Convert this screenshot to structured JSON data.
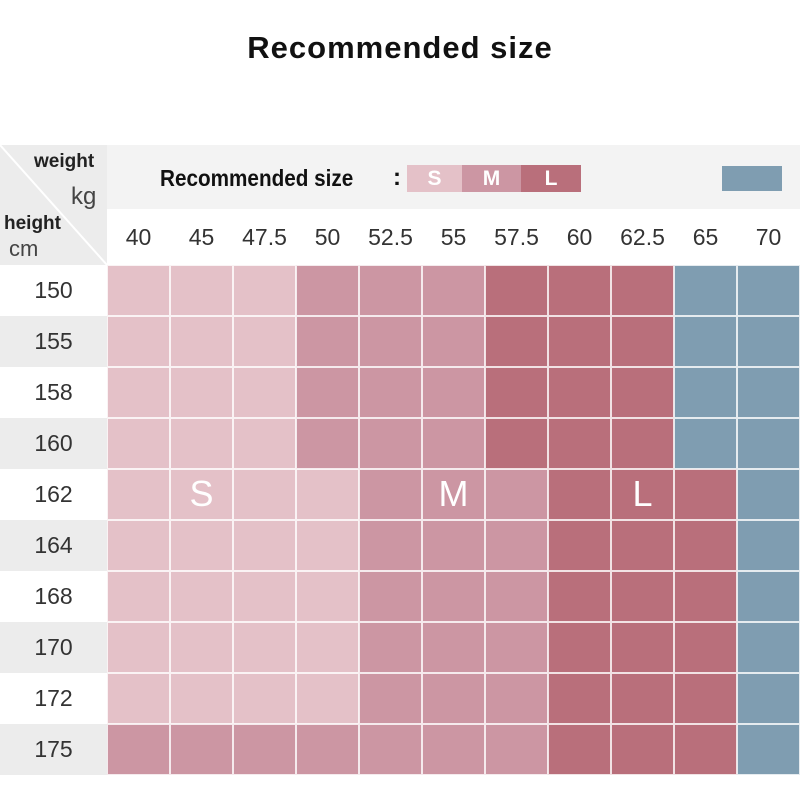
{
  "title": "Recommended size",
  "chart_data": {
    "type": "heatmap",
    "title": "Recommended size",
    "xlabel": "weight",
    "x_unit": "kg",
    "ylabel": "height",
    "y_unit": "cm",
    "legend_label": "Recommended size",
    "legend_colon": ":",
    "legend": [
      {
        "size": "S",
        "color": "#e4c1c8"
      },
      {
        "size": "M",
        "color": "#cc96a3"
      },
      {
        "size": "L",
        "color": "#b96f7b"
      }
    ],
    "extra_color": "#7f9db1",
    "weights": [
      "40",
      "45",
      "47.5",
      "50",
      "52.5",
      "55",
      "57.5",
      "60",
      "62.5",
      "65",
      "70"
    ],
    "heights": [
      "150",
      "155",
      "158",
      "160",
      "162",
      "164",
      "168",
      "170",
      "172",
      "175"
    ],
    "colors": {
      "S": "#e4c1c8",
      "M": "#cc96a3",
      "L": "#b96f7b",
      "X": "#7f9db1"
    },
    "grid": [
      [
        "S",
        "S",
        "S",
        "M",
        "M",
        "M",
        "L",
        "L",
        "L",
        "X",
        "X"
      ],
      [
        "S",
        "S",
        "S",
        "M",
        "M",
        "M",
        "L",
        "L",
        "L",
        "X",
        "X"
      ],
      [
        "S",
        "S",
        "S",
        "M",
        "M",
        "M",
        "L",
        "L",
        "L",
        "X",
        "X"
      ],
      [
        "S",
        "S",
        "S",
        "M",
        "M",
        "M",
        "L",
        "L",
        "L",
        "X",
        "X"
      ],
      [
        "S",
        "S",
        "S",
        "S",
        "M",
        "M",
        "M",
        "L",
        "L",
        "L",
        "X"
      ],
      [
        "S",
        "S",
        "S",
        "S",
        "M",
        "M",
        "M",
        "L",
        "L",
        "L",
        "X"
      ],
      [
        "S",
        "S",
        "S",
        "S",
        "M",
        "M",
        "M",
        "L",
        "L",
        "L",
        "X"
      ],
      [
        "S",
        "S",
        "S",
        "S",
        "M",
        "M",
        "M",
        "L",
        "L",
        "L",
        "X"
      ],
      [
        "S",
        "S",
        "S",
        "S",
        "M",
        "M",
        "M",
        "L",
        "L",
        "L",
        "X"
      ],
      [
        "M",
        "M",
        "M",
        "M",
        "M",
        "M",
        "M",
        "L",
        "L",
        "L",
        "X"
      ]
    ],
    "zone_labels": [
      {
        "text": "S",
        "row": 4,
        "col": 1
      },
      {
        "text": "M",
        "row": 4,
        "col": 5
      },
      {
        "text": "L",
        "row": 4,
        "col": 8
      }
    ]
  }
}
